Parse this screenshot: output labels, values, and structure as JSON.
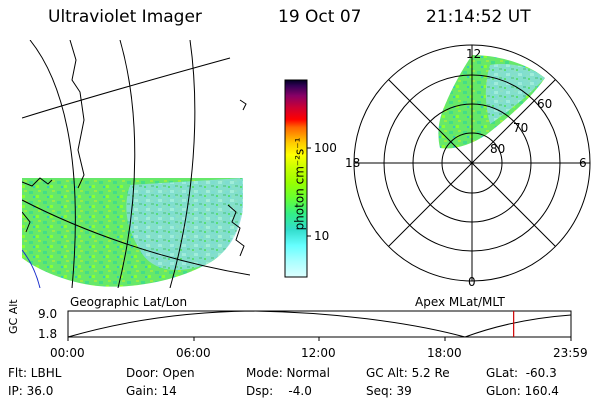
{
  "header": {
    "title": "Ultraviolet Imager",
    "date": "19 Oct 07",
    "time": "21:14:52 UT"
  },
  "map": {
    "label": "Geographic Lat/Lon"
  },
  "colorbar": {
    "unit_label": "photon cm⁻²s⁻¹",
    "ticks": [
      "100",
      "10"
    ],
    "colors": [
      "#000033",
      "#330066",
      "#660099",
      "#990066",
      "#cc0033",
      "#ff0000",
      "#ff6600",
      "#ff9900",
      "#ffcc00",
      "#ffff00",
      "#ccff00",
      "#99ff00",
      "#66ff33",
      "#33ff66",
      "#33ffcc",
      "#66ffff",
      "#aaffff",
      "#ddffff"
    ]
  },
  "polar": {
    "label": "Apex MLat/MLT",
    "mlt_labels": {
      "top": "12",
      "left": "18",
      "right": "6",
      "bottom": "0"
    },
    "lat_labels": [
      "60",
      "70",
      "80"
    ]
  },
  "altitude_plot": {
    "ylabel": "GC Alt",
    "yticks": [
      "9.0",
      "1.8"
    ],
    "xticks": [
      "00:00",
      "06:00",
      "12:00",
      "18:00",
      "23:59"
    ],
    "marker_color": "#cc0000",
    "current_fraction": 0.886
  },
  "status": {
    "flt": "Flt: LBHL",
    "ip": "IP: 36.0",
    "door": "Door: Open",
    "gain": "Gain: 14",
    "mode": "Mode: Normal",
    "dsp": "Dsp:    -4.0",
    "gcalt": "GC Alt: 5.2 Re",
    "seq": "Seq: 39",
    "glat": "GLat:  -60.3",
    "glon": "GLon: 160.4"
  }
}
